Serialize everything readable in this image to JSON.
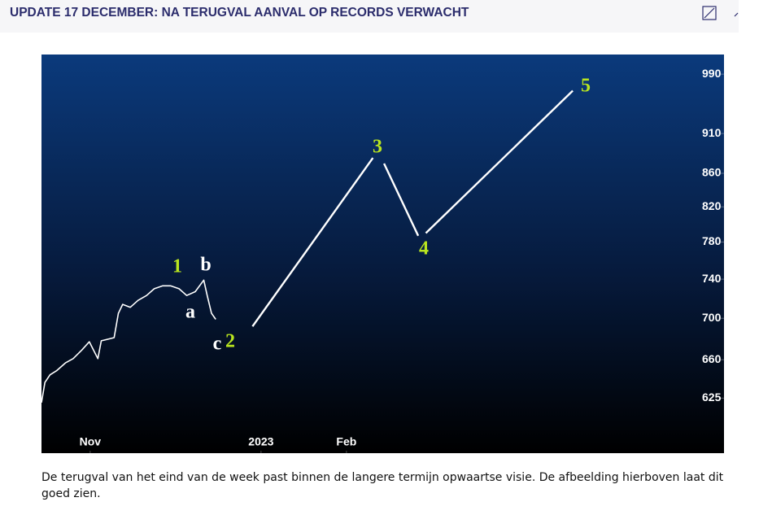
{
  "header": {
    "title": "UPDATE 17 DECEMBER: NA TERUGVAL AANVAL OP RECORDS VERWACHT"
  },
  "chart_data": {
    "type": "line",
    "log_scale": true,
    "ylim": [
      578,
      1018
    ],
    "yticks": [
      625,
      660,
      700,
      740,
      780,
      820,
      860,
      910,
      990
    ],
    "xlim": [
      10.43,
      18.42
    ],
    "xticks": [
      {
        "value": 11,
        "label": "Nov"
      },
      {
        "value": 13,
        "label": "2023"
      },
      {
        "value": 14,
        "label": "Feb"
      }
    ],
    "series": [
      {
        "color": "#ffffff",
        "x": [
          10.43,
          10.47,
          10.53,
          10.61,
          10.71,
          10.8,
          10.9,
          10.99,
          11.09,
          11.13,
          11.28,
          11.33,
          11.38,
          11.47,
          11.56,
          11.66,
          11.75,
          11.85,
          11.94,
          12.04,
          12.13,
          12.23,
          12.33,
          12.37,
          12.42,
          12.47
        ],
        "values": [
          621,
          639,
          646,
          650,
          657,
          661,
          669,
          677,
          661,
          678,
          681,
          705,
          714,
          711,
          718,
          723,
          730,
          733,
          733,
          730,
          723,
          727,
          739,
          723,
          705,
          699
        ]
      },
      {
        "color": "#ffffff",
        "x": [
          12.9,
          14.31,
          null,
          14.44,
          14.84,
          null,
          14.93,
          16.65
        ],
        "values": [
          692,
          879,
          null,
          872,
          787,
          null,
          790,
          967
        ]
      }
    ],
    "annotations": [
      {
        "text": "1",
        "color": "#b9e51f"
      },
      {
        "text": "b",
        "color": "#ffffff"
      },
      {
        "text": "a",
        "color": "#ffffff"
      },
      {
        "text": "c",
        "color": "#ffffff"
      },
      {
        "text": "2",
        "color": "#b9e51f"
      },
      {
        "text": "3",
        "color": "#b9e51f"
      },
      {
        "text": "4",
        "color": "#b9e51f"
      },
      {
        "text": "5",
        "color": "#b9e51f"
      }
    ]
  },
  "caption": "De terugval van het eind van de week past binnen de langere termijn opwaartse visie. De afbeelding hierboven laat dit goed zien."
}
